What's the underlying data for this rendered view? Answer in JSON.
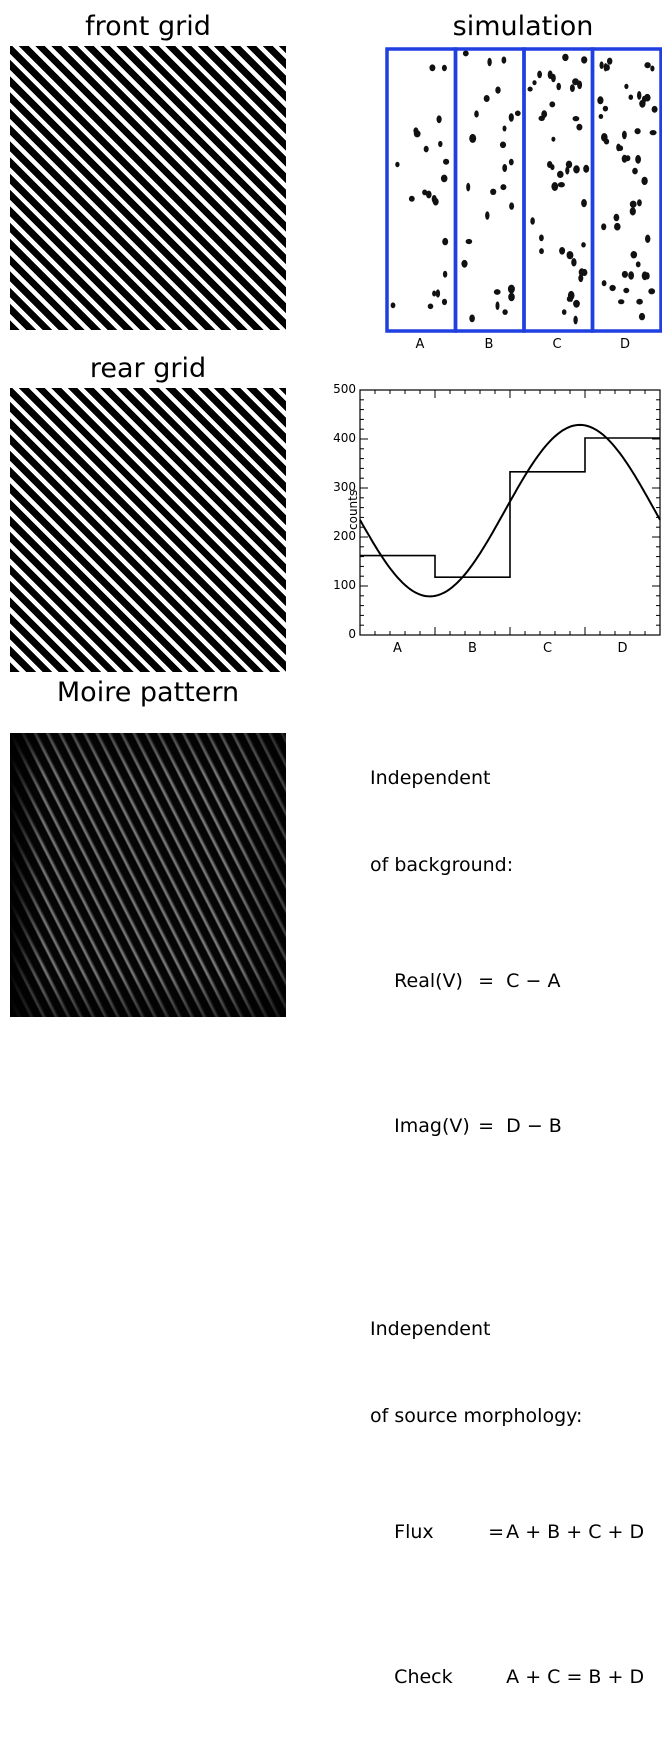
{
  "titles": {
    "front_grid": "front grid",
    "simulation": "simulation",
    "rear_grid": "rear grid",
    "moire": "Moire pattern"
  },
  "simulation": {
    "columns": [
      "A",
      "B",
      "C",
      "D"
    ],
    "border_color": "#1f3fe0"
  },
  "chart_data": {
    "type": "line",
    "xlabel": "",
    "ylabel": "counts",
    "categories": [
      "A",
      "B",
      "C",
      "D"
    ],
    "ylim": [
      0,
      500
    ],
    "yticks": [
      "0",
      "100",
      "200",
      "300",
      "400",
      "500"
    ],
    "step_values": [
      162,
      118,
      333,
      402
    ],
    "sine": {
      "mean": 253.75,
      "amplitude": 175,
      "min_at_fraction": 0.233
    },
    "grid": false
  },
  "info": {
    "heading1": "Independent",
    "heading1b": "of background:",
    "real_lhs": "Real(V)",
    "real_eq": "=",
    "real_rhs": "C − A",
    "imag_lhs": "Imag(V)",
    "imag_eq": "=",
    "imag_rhs": "D − B",
    "heading2": "Independent",
    "heading2b": "of source morphology:",
    "flux_lhs": "Flux",
    "flux_eq": "=",
    "flux_rhs": "A + B + C + D",
    "check_lhs": "Check",
    "check_rhs": "A + C = B + D"
  }
}
